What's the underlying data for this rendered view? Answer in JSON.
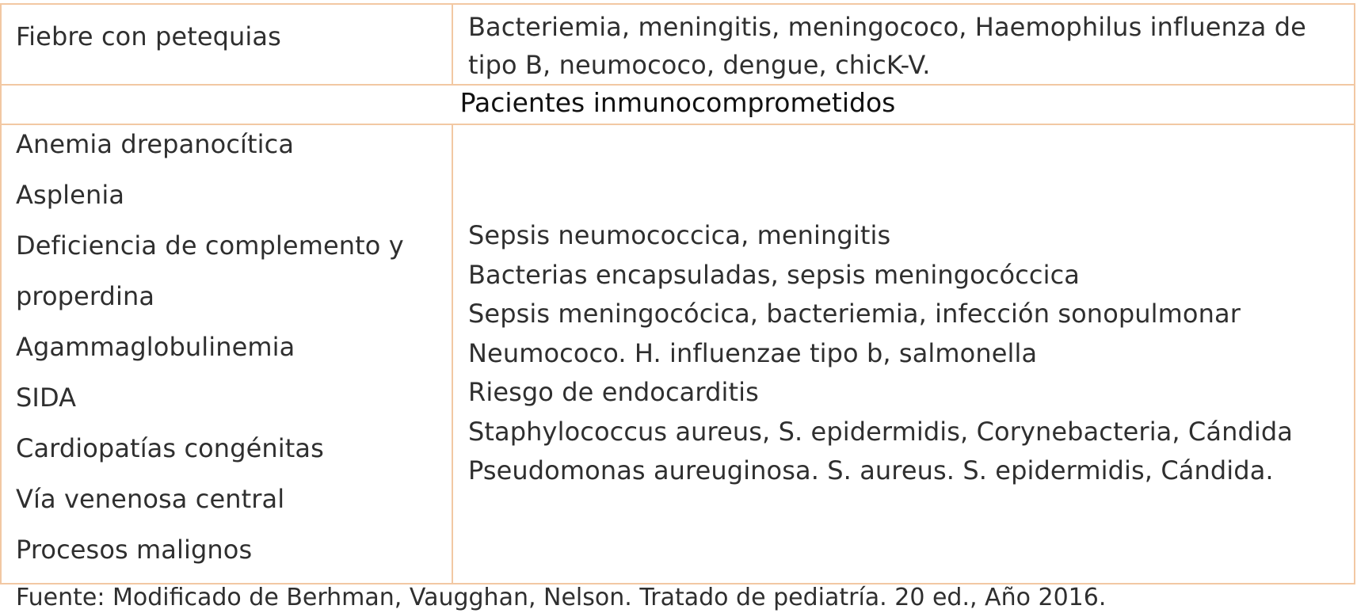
{
  "row1": {
    "left": "Fiebre con petequias",
    "right_lines": [
      "Bacteriemia, meningitis, meningococo, Haemophilus influenza de",
      "tipo B, neumococo, dengue, chicK-V."
    ]
  },
  "section_header": "Pacientes inmunocomprometidos",
  "row2": {
    "left_items": [
      "Anemia drepanocítica",
      "Asplenia",
      "Deficiencia de complemento y",
      "properdina",
      "Agammaglobulinemia",
      "SIDA",
      "Cardiopatías congénitas",
      "Vía venenosa central",
      "Procesos malignos"
    ],
    "right_lines": [
      "Sepsis neumococcica, meningitis",
      "Bacterias encapsuladas, sepsis meningocóccica",
      "Sepsis meningocócica, bacteriemia, infección sonopulmonar",
      "Neumococo. H. influenzae tipo b, salmonella",
      "Riesgo de endocarditis",
      "Staphylococcus aureus, S. epidermidis, Corynebacteria, Cándida",
      "Pseudomonas aureuginosa. S. aureus. S. epidermidis, Cándida."
    ]
  },
  "footer": "Fuente: Modificado de Berhman, Vaugghan, Nelson. Tratado de pediatría. 20 ed., Año 2016.",
  "colors": {
    "border": "#f2c8a3",
    "text": "#2f2f2f",
    "header_text": "#111111"
  }
}
